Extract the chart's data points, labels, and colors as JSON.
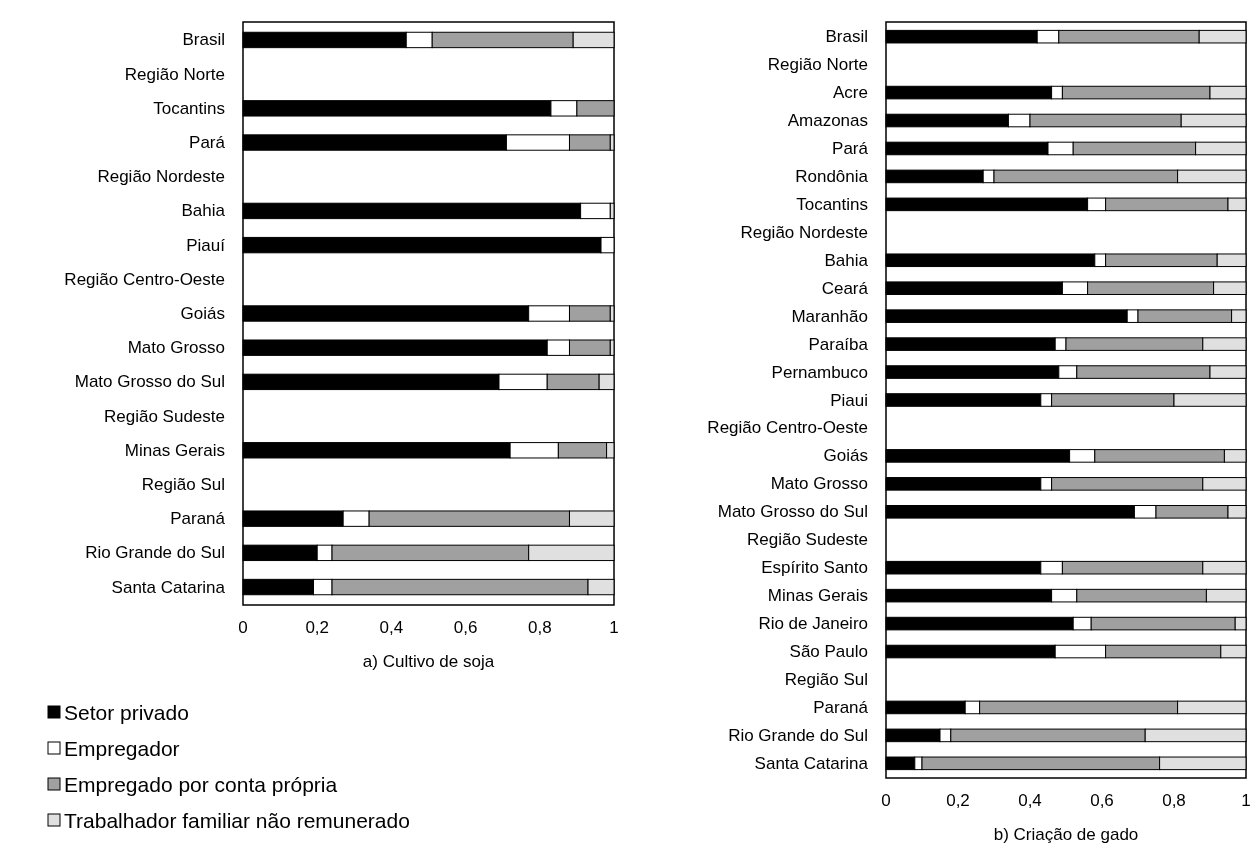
{
  "chart_data": [
    {
      "type": "bar",
      "orientation": "horizontal",
      "stacked": true,
      "title": "a) Cultivo de soja",
      "legend": "bottom",
      "categories": [
        "Brasil",
        "Região Norte",
        "Tocantins",
        "Pará",
        "Região Nordeste",
        "Bahia",
        "Piauí",
        "Região Centro-Oeste",
        "Goiás",
        "Mato Grosso",
        "Mato Grosso do Sul",
        "Região Sudeste",
        "Minas Gerais",
        "Região Sul",
        "Paraná",
        "Rio Grande do Sul",
        "Santa Catarina"
      ],
      "series": [
        {
          "name": "Setor privado",
          "color": "#000000",
          "values": [
            0.44,
            null,
            0.83,
            0.71,
            null,
            0.91,
            0.965,
            null,
            0.77,
            0.82,
            0.69,
            null,
            0.72,
            null,
            0.27,
            0.2,
            0.19
          ]
        },
        {
          "name": "Empregador",
          "color": "#ffffff",
          "values": [
            0.07,
            null,
            0.07,
            0.17,
            null,
            0.08,
            0.035,
            null,
            0.11,
            0.06,
            0.13,
            null,
            0.13,
            null,
            0.07,
            0.04,
            0.05
          ]
        },
        {
          "name": "Empregado por conta própria",
          "color": "#a0a0a0",
          "values": [
            0.38,
            null,
            0.1,
            0.11,
            null,
            0,
            0,
            null,
            0.11,
            0.11,
            0.14,
            null,
            0.13,
            null,
            0.54,
            0.53,
            0.69
          ]
        },
        {
          "name": "Trabalhador familiar não remunerado",
          "color": "#e0e0e0",
          "values": [
            0.11,
            null,
            0,
            0.01,
            null,
            0.01,
            0,
            null,
            0.01,
            0.01,
            0.04,
            null,
            0.02,
            null,
            0.12,
            0.23,
            0.07
          ]
        }
      ],
      "xlim": [
        0,
        1
      ],
      "xticks": [
        {
          "value": 0,
          "label": "0"
        },
        {
          "value": 0.2,
          "label": "0,2"
        },
        {
          "value": 0.4,
          "label": "0,4"
        },
        {
          "value": 0.6,
          "label": "0,6"
        },
        {
          "value": 0.8,
          "label": "0,8"
        },
        {
          "value": 1,
          "label": "1"
        }
      ]
    },
    {
      "type": "bar",
      "orientation": "horizontal",
      "stacked": true,
      "title": "b) Criação de gado",
      "categories": [
        "Brasil",
        "Região Norte",
        "Acre",
        "Amazonas",
        "Pará",
        "Rondônia",
        "Tocantins",
        "Região Nordeste",
        "Bahia",
        "Ceará",
        "Maranhão",
        "Paraíba",
        "Pernambuco",
        "Piaui",
        "Região Centro-Oeste",
        "Goiás",
        "Mato Grosso",
        "Mato Grosso do Sul",
        "Região Sudeste",
        "Espírito Santo",
        "Minas Gerais",
        "Rio de Janeiro",
        "São Paulo",
        "Região Sul",
        "Paraná",
        "Rio Grande do Sul",
        "Santa Catarina"
      ],
      "series": [
        {
          "color": "#000000",
          "values": [
            0.42,
            null,
            0.46,
            0.34,
            0.45,
            0.27,
            0.56,
            null,
            0.58,
            0.49,
            0.67,
            0.47,
            0.48,
            0.43,
            null,
            0.51,
            0.43,
            0.69,
            null,
            0.43,
            0.46,
            0.52,
            0.47,
            null,
            0.22,
            0.15,
            0.08
          ]
        },
        {
          "color": "#ffffff",
          "values": [
            0.06,
            null,
            0.03,
            0.06,
            0.07,
            0.03,
            0.05,
            null,
            0.03,
            0.07,
            0.03,
            0.03,
            0.05,
            0.03,
            null,
            0.07,
            0.03,
            0.06,
            null,
            0.06,
            0.07,
            0.05,
            0.14,
            null,
            0.04,
            0.03,
            0.02
          ]
        },
        {
          "color": "#a0a0a0",
          "values": [
            0.39,
            null,
            0.41,
            0.42,
            0.34,
            0.51,
            0.34,
            null,
            0.31,
            0.35,
            0.26,
            0.38,
            0.37,
            0.34,
            null,
            0.36,
            0.42,
            0.2,
            null,
            0.39,
            0.36,
            0.4,
            0.32,
            null,
            0.55,
            0.54,
            0.66
          ]
        },
        {
          "color": "#e0e0e0",
          "values": [
            0.13,
            null,
            0.1,
            0.18,
            0.14,
            0.19,
            0.05,
            null,
            0.08,
            0.09,
            0.04,
            0.12,
            0.1,
            0.2,
            null,
            0.06,
            0.12,
            0.05,
            null,
            0.12,
            0.11,
            0.03,
            0.07,
            null,
            0.19,
            0.28,
            0.24
          ]
        }
      ],
      "xlim": [
        0,
        1
      ],
      "xticks": [
        {
          "value": 0,
          "label": "0"
        },
        {
          "value": 0.2,
          "label": "0,2"
        },
        {
          "value": 0.4,
          "label": "0,4"
        },
        {
          "value": 0.6,
          "label": "0,6"
        },
        {
          "value": 0.8,
          "label": "0,8"
        },
        {
          "value": 1,
          "label": "1"
        }
      ]
    }
  ]
}
